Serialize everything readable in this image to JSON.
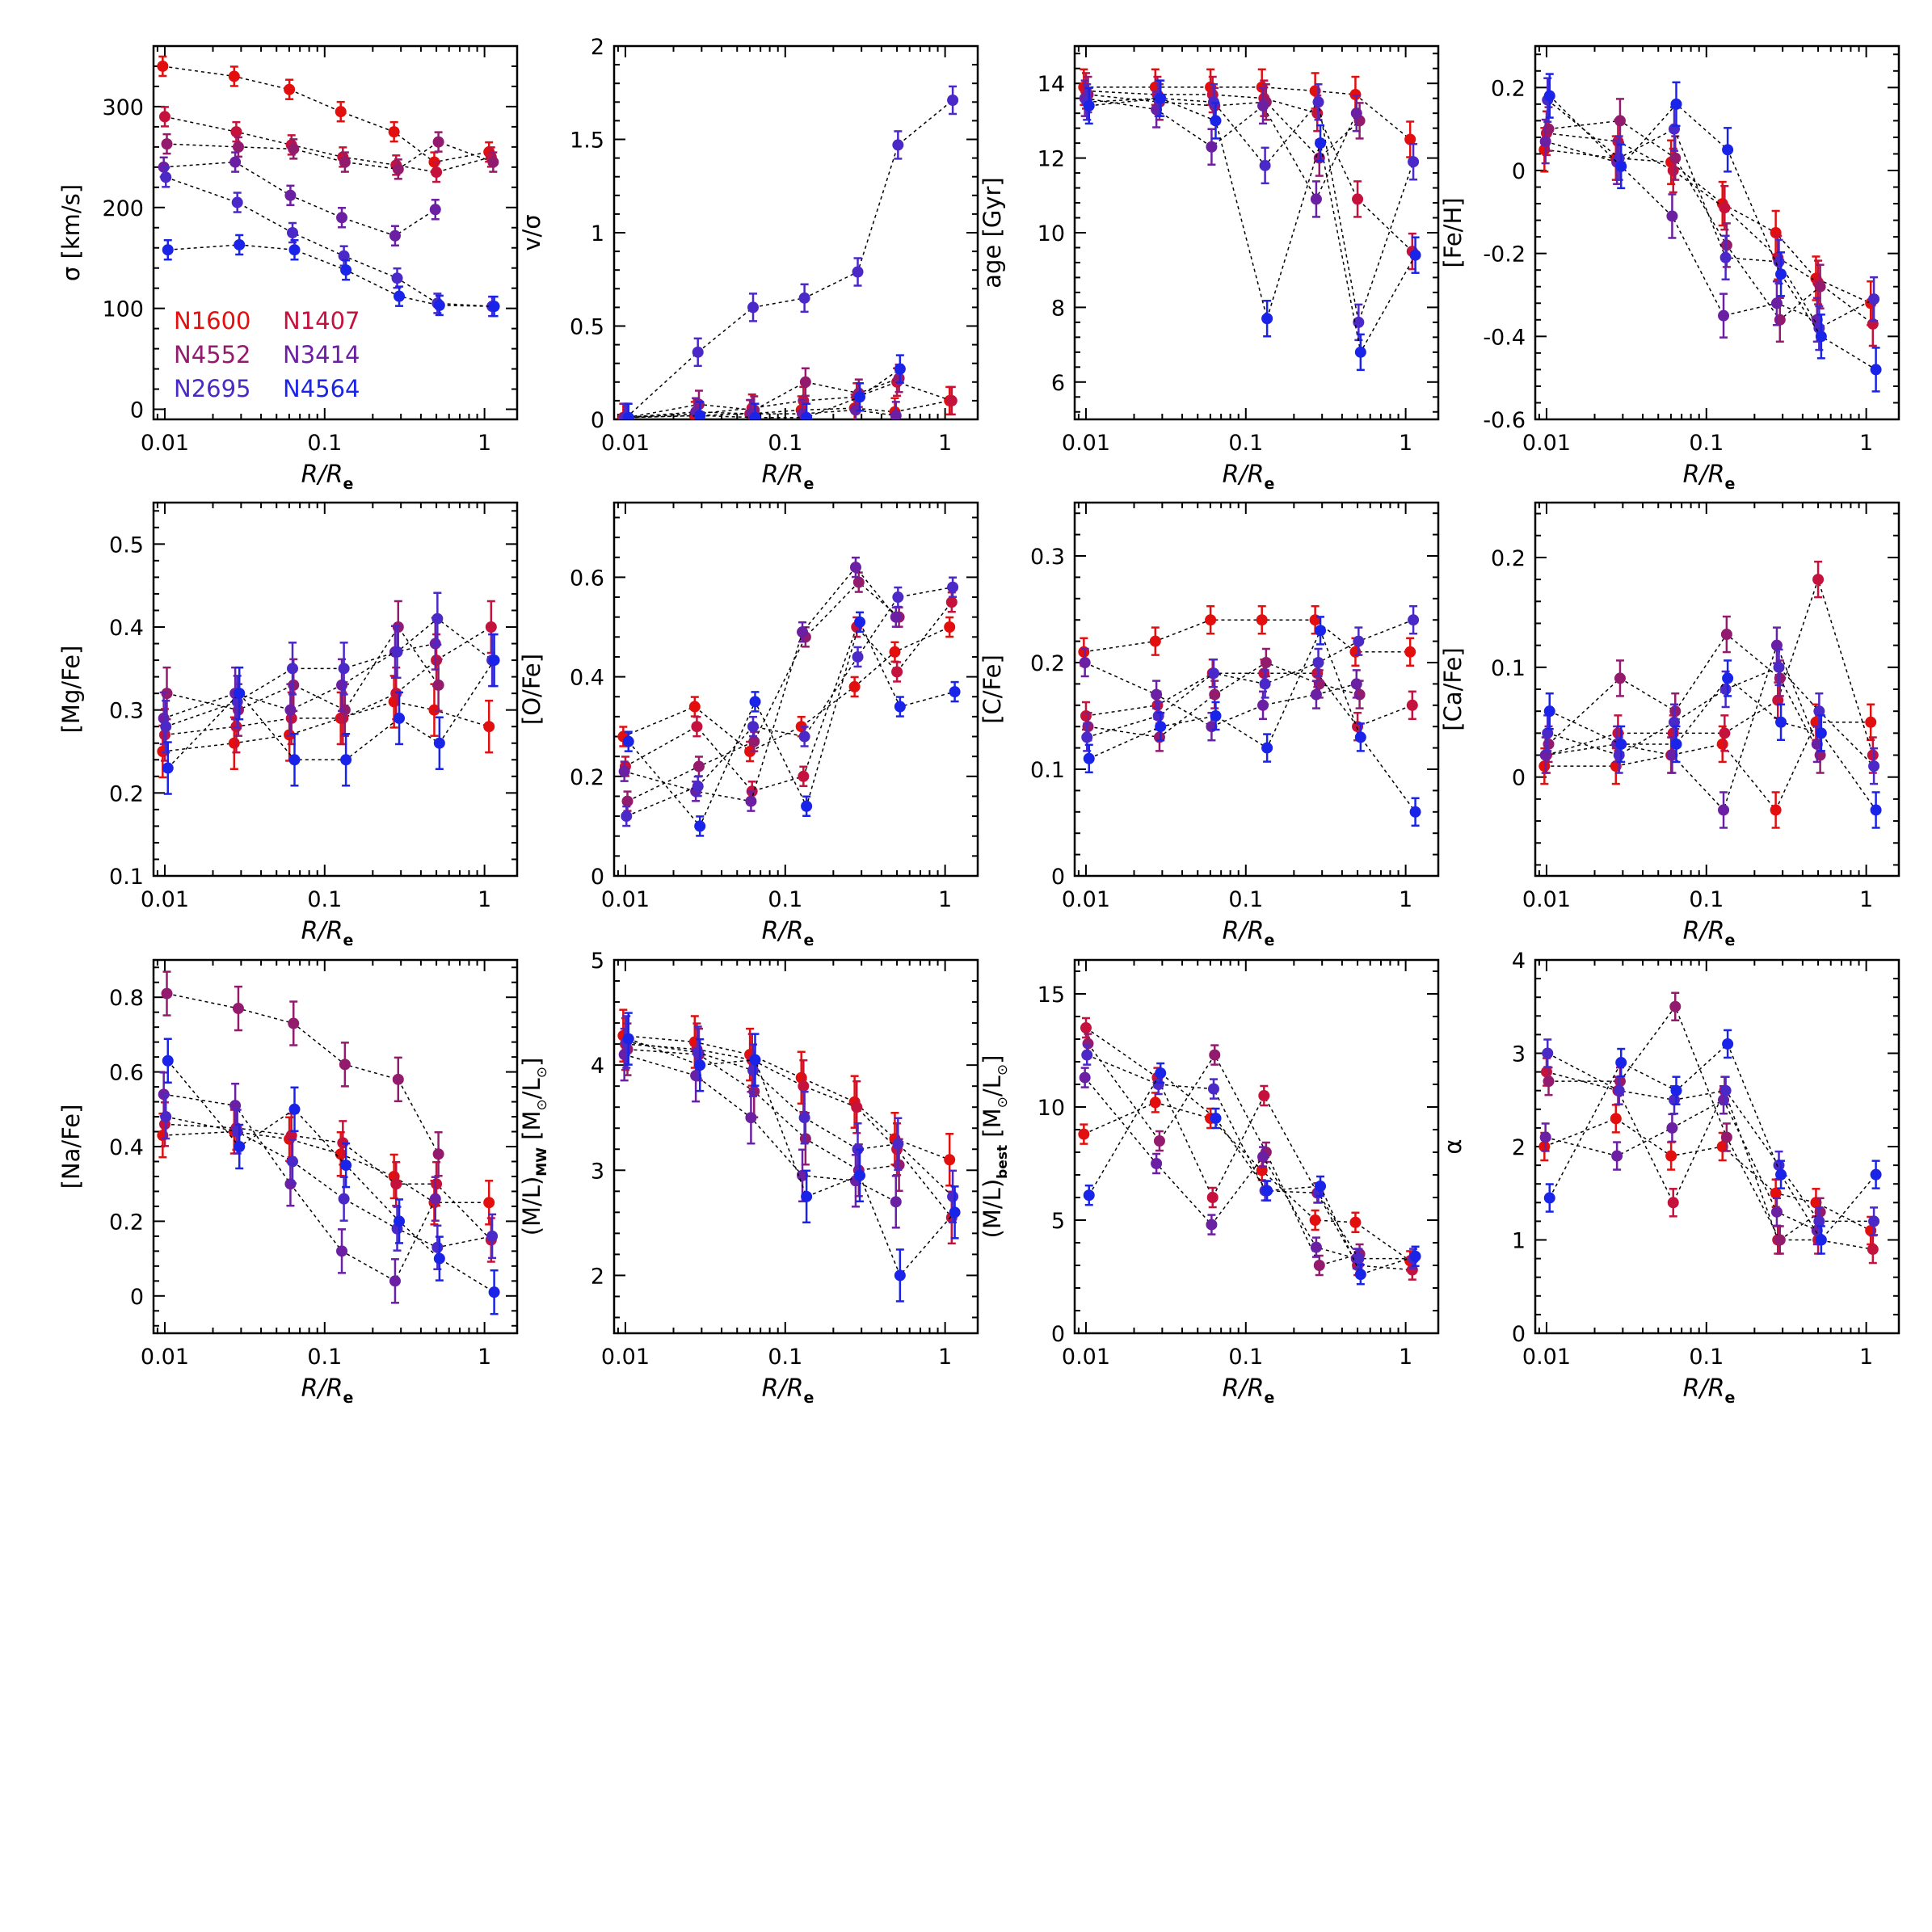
{
  "galaxies": [
    {
      "name": "N1600",
      "color": "#e30e0e"
    },
    {
      "name": "N1407",
      "color": "#c4123c"
    },
    {
      "name": "N4552",
      "color": "#931b6e"
    },
    {
      "name": "N3414",
      "color": "#6b1fa3"
    },
    {
      "name": "N2695",
      "color": "#4b28c8"
    },
    {
      "name": "N4564",
      "color": "#1a24e8"
    }
  ],
  "x_axis": {
    "label_base": "R/R",
    "label_sub": "e",
    "scale": "log",
    "range": [
      0.0085,
      1.6
    ],
    "ticks": [
      "0.01",
      "0.1",
      "1"
    ]
  },
  "chart_data": [
    {
      "type": "scatter",
      "ylabel": "σ  [km/s]",
      "ylim": [
        -10,
        360
      ],
      "yticks": [
        "0",
        "100",
        "200",
        "300"
      ],
      "legend": "lower-left",
      "x": [
        0.01,
        0.028,
        0.062,
        0.13,
        0.28,
        0.5,
        1.1
      ],
      "series": [
        {
          "name": "N1600",
          "values": [
            340,
            330,
            317,
            295,
            275,
            245,
            255
          ]
        },
        {
          "name": "N1407",
          "values": [
            290,
            275,
            262,
            250,
            242,
            235,
            250
          ]
        },
        {
          "name": "N4552",
          "values": [
            263,
            260,
            258,
            245,
            238,
            265,
            245
          ]
        },
        {
          "name": "N3414",
          "values": [
            240,
            245,
            212,
            190,
            172,
            198,
            null
          ]
        },
        {
          "name": "N2695",
          "values": [
            230,
            205,
            175,
            152,
            130,
            105,
            102
          ]
        },
        {
          "name": "N4564",
          "values": [
            158,
            163,
            158,
            138,
            112,
            103,
            102
          ]
        }
      ]
    },
    {
      "type": "scatter",
      "ylabel": "v/σ",
      "ylim": [
        0,
        2
      ],
      "yticks": [
        "0",
        "0.5",
        "1",
        "1.5",
        "2"
      ],
      "x": [
        0.01,
        0.028,
        0.062,
        0.13,
        0.28,
        0.5,
        1.1
      ],
      "series": [
        {
          "name": "N1600",
          "values": [
            0.01,
            0.02,
            0.03,
            0.05,
            0.06,
            0.04,
            0.1
          ]
        },
        {
          "name": "N1407",
          "values": [
            0.01,
            0.03,
            0.06,
            0.1,
            0.12,
            0.2,
            0.1
          ]
        },
        {
          "name": "N4552",
          "values": [
            0.01,
            0.08,
            0.05,
            0.2,
            0.14,
            0.22,
            null
          ]
        },
        {
          "name": "N3414",
          "values": [
            0.01,
            0.04,
            0.03,
            0.03,
            0.05,
            0.02,
            null
          ]
        },
        {
          "name": "N2695",
          "values": [
            0.01,
            0.36,
            0.6,
            0.65,
            0.79,
            1.47,
            1.71
          ]
        },
        {
          "name": "N4564",
          "values": [
            0.01,
            0.02,
            0.01,
            0.01,
            0.12,
            0.27,
            null
          ]
        }
      ]
    },
    {
      "type": "scatter",
      "ylabel": "age  [Gyr]",
      "ylim": [
        5,
        15
      ],
      "yticks": [
        "6",
        "8",
        "10",
        "12",
        "14"
      ],
      "x": [
        0.01,
        0.028,
        0.062,
        0.13,
        0.28,
        0.5,
        1.1
      ],
      "series": [
        {
          "name": "N1600",
          "values": [
            13.9,
            13.9,
            13.9,
            13.9,
            13.8,
            13.7,
            12.5
          ]
        },
        {
          "name": "N1407",
          "values": [
            13.8,
            13.7,
            13.7,
            13.6,
            13.2,
            10.9,
            9.5
          ]
        },
        {
          "name": "N4552",
          "values": [
            13.7,
            13.5,
            13.4,
            13.5,
            12.0,
            13.0,
            null
          ]
        },
        {
          "name": "N3414",
          "values": [
            13.6,
            13.3,
            12.3,
            13.4,
            10.9,
            13.2,
            null
          ]
        },
        {
          "name": "N2695",
          "values": [
            13.5,
            13.6,
            13.5,
            11.8,
            13.5,
            7.6,
            11.9
          ]
        },
        {
          "name": "N4564",
          "values": [
            13.4,
            13.6,
            13.0,
            7.7,
            12.4,
            6.8,
            9.4
          ]
        }
      ]
    },
    {
      "type": "scatter",
      "ylabel": "[Fe/H]",
      "ylim": [
        -0.6,
        0.3
      ],
      "yticks": [
        "-0.6",
        "-0.4",
        "-0.2",
        "0",
        "0.2"
      ],
      "x": [
        0.01,
        0.028,
        0.062,
        0.13,
        0.28,
        0.5,
        1.1
      ],
      "series": [
        {
          "name": "N1600",
          "values": [
            0.05,
            0.03,
            0.02,
            -0.08,
            -0.15,
            -0.26,
            -0.32
          ]
        },
        {
          "name": "N1407",
          "values": [
            0.09,
            0.07,
            0.0,
            -0.09,
            -0.21,
            -0.27,
            -0.37
          ]
        },
        {
          "name": "N4552",
          "values": [
            0.1,
            0.12,
            0.03,
            -0.18,
            -0.36,
            -0.28,
            null
          ]
        },
        {
          "name": "N3414",
          "values": [
            0.07,
            0.02,
            -0.11,
            -0.35,
            -0.32,
            -0.36,
            null
          ]
        },
        {
          "name": "N2695",
          "values": [
            0.17,
            0.03,
            0.1,
            -0.21,
            -0.22,
            -0.38,
            -0.31
          ]
        },
        {
          "name": "N4564",
          "values": [
            0.18,
            0.01,
            0.16,
            0.05,
            -0.25,
            -0.4,
            -0.48
          ]
        }
      ]
    },
    {
      "type": "scatter",
      "ylabel": "[Mg/Fe]",
      "ylim": [
        0.1,
        0.55
      ],
      "yticks": [
        "0.1",
        "0.2",
        "0.3",
        "0.4",
        "0.5"
      ],
      "x": [
        0.01,
        0.028,
        0.062,
        0.13,
        0.28,
        0.5,
        1.1
      ],
      "series": [
        {
          "name": "N1600",
          "values": [
            0.25,
            0.26,
            0.27,
            0.29,
            0.31,
            0.3,
            0.28
          ]
        },
        {
          "name": "N1407",
          "values": [
            0.27,
            0.28,
            0.29,
            0.29,
            0.32,
            0.36,
            0.4
          ]
        },
        {
          "name": "N4552",
          "values": [
            0.32,
            0.3,
            0.33,
            0.3,
            0.4,
            0.33,
            null
          ]
        },
        {
          "name": "N3414",
          "values": [
            0.29,
            0.32,
            0.3,
            0.33,
            0.37,
            0.38,
            null
          ]
        },
        {
          "name": "N2695",
          "values": [
            0.28,
            0.31,
            0.35,
            0.35,
            0.37,
            0.41,
            0.36
          ]
        },
        {
          "name": "N4564",
          "values": [
            0.23,
            0.32,
            0.24,
            0.24,
            0.29,
            0.26,
            0.36
          ]
        }
      ]
    },
    {
      "type": "scatter",
      "ylabel": "[O/Fe]",
      "ylim": [
        0,
        0.75
      ],
      "yticks": [
        "0",
        "0.2",
        "0.4",
        "0.6"
      ],
      "x": [
        0.01,
        0.028,
        0.062,
        0.13,
        0.28,
        0.5,
        1.1
      ],
      "series": [
        {
          "name": "N1600",
          "values": [
            0.28,
            0.34,
            0.25,
            0.3,
            0.38,
            0.45,
            0.5
          ]
        },
        {
          "name": "N1407",
          "values": [
            0.22,
            0.3,
            0.17,
            0.2,
            0.5,
            0.41,
            0.55
          ]
        },
        {
          "name": "N4552",
          "values": [
            0.15,
            0.22,
            0.27,
            0.48,
            0.59,
            0.52,
            null
          ]
        },
        {
          "name": "N3414",
          "values": [
            0.21,
            0.17,
            0.15,
            0.49,
            0.62,
            0.52,
            null
          ]
        },
        {
          "name": "N2695",
          "values": [
            0.12,
            0.18,
            0.3,
            0.28,
            0.44,
            0.56,
            0.58
          ]
        },
        {
          "name": "N4564",
          "values": [
            0.27,
            0.1,
            0.35,
            0.14,
            0.51,
            0.34,
            0.37
          ]
        }
      ]
    },
    {
      "type": "scatter",
      "ylabel": "[C/Fe]",
      "ylim": [
        0,
        0.35
      ],
      "yticks": [
        "0",
        "0.1",
        "0.2",
        "0.3"
      ],
      "x": [
        0.01,
        0.028,
        0.062,
        0.13,
        0.28,
        0.5,
        1.1
      ],
      "series": [
        {
          "name": "N1600",
          "values": [
            0.21,
            0.22,
            0.24,
            0.24,
            0.24,
            0.21,
            0.21
          ]
        },
        {
          "name": "N1407",
          "values": [
            0.15,
            0.16,
            0.19,
            0.19,
            0.19,
            0.14,
            0.16
          ]
        },
        {
          "name": "N4552",
          "values": [
            0.14,
            0.13,
            0.17,
            0.2,
            0.18,
            0.17,
            null
          ]
        },
        {
          "name": "N3414",
          "values": [
            0.2,
            0.17,
            0.14,
            0.16,
            0.17,
            0.18,
            null
          ]
        },
        {
          "name": "N2695",
          "values": [
            0.13,
            0.15,
            0.19,
            0.18,
            0.2,
            0.22,
            0.24
          ]
        },
        {
          "name": "N4564",
          "values": [
            0.11,
            0.14,
            0.15,
            0.12,
            0.23,
            0.13,
            0.06
          ]
        }
      ]
    },
    {
      "type": "scatter",
      "ylabel": "[Ca/Fe]",
      "ylim": [
        -0.09,
        0.25
      ],
      "yticks": [
        "0",
        "0.1",
        "0.2"
      ],
      "x": [
        0.01,
        0.028,
        0.062,
        0.13,
        0.28,
        0.5,
        1.1
      ],
      "series": [
        {
          "name": "N1600",
          "values": [
            0.01,
            0.01,
            0.02,
            0.03,
            -0.03,
            0.05,
            0.05
          ]
        },
        {
          "name": "N1407",
          "values": [
            0.02,
            0.04,
            0.04,
            0.04,
            0.07,
            0.18,
            0.02
          ]
        },
        {
          "name": "N4552",
          "values": [
            0.03,
            0.09,
            0.06,
            0.13,
            0.09,
            0.02,
            null
          ]
        },
        {
          "name": "N3414",
          "values": [
            0.02,
            0.03,
            0.02,
            -0.03,
            0.12,
            0.03,
            null
          ]
        },
        {
          "name": "N2695",
          "values": [
            0.04,
            0.02,
            0.05,
            0.08,
            0.1,
            0.06,
            0.01
          ]
        },
        {
          "name": "N4564",
          "values": [
            0.06,
            0.03,
            0.03,
            0.09,
            0.05,
            0.04,
            -0.03
          ]
        }
      ]
    },
    {
      "type": "scatter",
      "ylabel": "[Na/Fe]",
      "ylim": [
        -0.1,
        0.9
      ],
      "yticks": [
        "0",
        "0.2",
        "0.4",
        "0.6",
        "0.8"
      ],
      "x": [
        0.01,
        0.028,
        0.062,
        0.13,
        0.28,
        0.5,
        1.1
      ],
      "series": [
        {
          "name": "N1600",
          "values": [
            0.43,
            0.44,
            0.42,
            0.38,
            0.32,
            0.25,
            0.25
          ]
        },
        {
          "name": "N1407",
          "values": [
            0.46,
            0.45,
            0.43,
            0.41,
            0.3,
            0.3,
            0.15
          ]
        },
        {
          "name": "N4552",
          "values": [
            0.81,
            0.77,
            0.73,
            0.62,
            0.58,
            0.38,
            null
          ]
        },
        {
          "name": "N3414",
          "values": [
            0.54,
            0.51,
            0.3,
            0.12,
            0.04,
            0.26,
            null
          ]
        },
        {
          "name": "N2695",
          "values": [
            0.48,
            0.44,
            0.36,
            0.26,
            0.18,
            0.13,
            0.16
          ]
        },
        {
          "name": "N4564",
          "values": [
            0.63,
            0.4,
            0.5,
            0.35,
            0.2,
            0.1,
            0.01
          ]
        }
      ]
    },
    {
      "type": "scatter",
      "ylabel": "(M/L)",
      "ylabel_sub": "MW",
      "ylabel_tail": " [M",
      "ylabel_sun": "⊙",
      "ylabel_end": "/L",
      "ylabel_end_sub": "⊙",
      "ylabel_close": "]",
      "ylim": [
        1.45,
        5
      ],
      "yticks": [
        "2",
        "3",
        "4",
        "5"
      ],
      "x": [
        0.01,
        0.028,
        0.062,
        0.13,
        0.28,
        0.5,
        1.1
      ],
      "series": [
        {
          "name": "N1600",
          "values": [
            4.28,
            4.22,
            4.1,
            3.88,
            3.65,
            3.3,
            3.1
          ]
        },
        {
          "name": "N1407",
          "values": [
            4.2,
            4.15,
            4.05,
            3.8,
            3.6,
            3.2,
            2.55
          ]
        },
        {
          "name": "N4552",
          "values": [
            4.15,
            4.1,
            3.75,
            3.3,
            3.0,
            3.05,
            null
          ]
        },
        {
          "name": "N3414",
          "values": [
            4.1,
            3.9,
            3.5,
            2.95,
            2.9,
            2.7,
            null
          ]
        },
        {
          "name": "N2695",
          "values": [
            4.22,
            4.12,
            3.95,
            3.5,
            3.2,
            3.25,
            2.75
          ]
        },
        {
          "name": "N4564",
          "values": [
            4.25,
            4.0,
            4.05,
            2.75,
            2.95,
            2.0,
            2.6
          ]
        }
      ]
    },
    {
      "type": "scatter",
      "ylabel": "(M/L)",
      "ylabel_sub": "best",
      "ylabel_tail": " [M",
      "ylabel_sun": "⊙",
      "ylabel_end": "/L",
      "ylabel_end_sub": "⊙",
      "ylabel_close": "]",
      "ylim": [
        0,
        16.5
      ],
      "yticks": [
        "0",
        "5",
        "10",
        "15"
      ],
      "x": [
        0.01,
        0.028,
        0.062,
        0.13,
        0.28,
        0.5,
        1.1
      ],
      "series": [
        {
          "name": "N1600",
          "values": [
            8.8,
            10.2,
            9.5,
            7.2,
            5.0,
            4.9,
            3.2
          ]
        },
        {
          "name": "N1407",
          "values": [
            13.5,
            11.3,
            6.0,
            10.5,
            6.2,
            3.0,
            2.8
          ]
        },
        {
          "name": "N4552",
          "values": [
            12.8,
            8.5,
            12.3,
            8.0,
            3.0,
            3.5,
            null
          ]
        },
        {
          "name": "N3414",
          "values": [
            11.3,
            7.5,
            4.8,
            7.8,
            3.8,
            3.3,
            null
          ]
        },
        {
          "name": "N2695",
          "values": [
            12.3,
            11.0,
            10.8,
            6.3,
            6.2,
            3.3,
            3.3
          ]
        },
        {
          "name": "N4564",
          "values": [
            6.1,
            11.5,
            9.5,
            6.3,
            6.5,
            2.6,
            3.4
          ]
        }
      ]
    },
    {
      "type": "scatter",
      "ylabel": "α",
      "ylim": [
        0,
        4
      ],
      "yticks": [
        "0",
        "1",
        "2",
        "3",
        "4"
      ],
      "x": [
        0.01,
        0.028,
        0.062,
        0.13,
        0.28,
        0.5,
        1.1
      ],
      "series": [
        {
          "name": "N1600",
          "values": [
            2.0,
            2.3,
            1.9,
            2.0,
            1.5,
            1.4,
            1.1
          ]
        },
        {
          "name": "N1407",
          "values": [
            2.8,
            2.6,
            1.4,
            2.6,
            1.0,
            1.0,
            0.9
          ]
        },
        {
          "name": "N4552",
          "values": [
            2.7,
            2.7,
            3.5,
            2.1,
            1.0,
            1.3,
            null
          ]
        },
        {
          "name": "N3414",
          "values": [
            2.1,
            1.9,
            2.2,
            2.5,
            1.3,
            1.1,
            null
          ]
        },
        {
          "name": "N2695",
          "values": [
            3.0,
            2.6,
            2.5,
            2.6,
            1.8,
            1.2,
            1.2
          ]
        },
        {
          "name": "N4564",
          "values": [
            1.45,
            2.9,
            2.6,
            3.1,
            1.7,
            1.0,
            1.7
          ]
        }
      ]
    }
  ]
}
